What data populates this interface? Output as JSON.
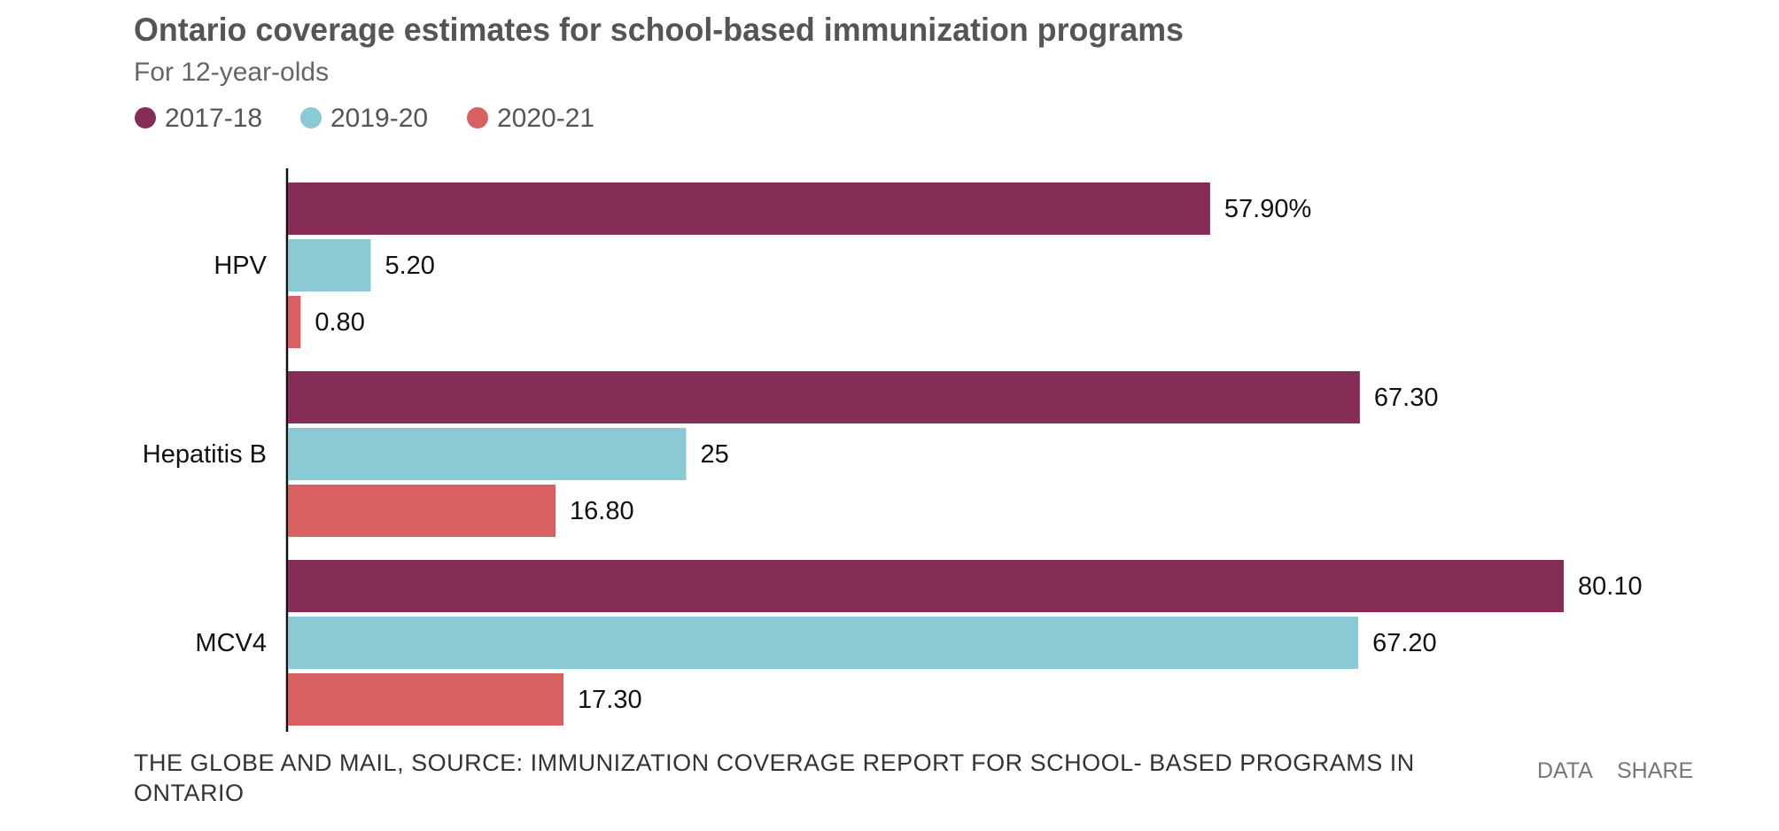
{
  "chart_data": {
    "type": "bar",
    "orientation": "horizontal",
    "title": "Ontario coverage estimates for school-based immunization programs",
    "subtitle": "For 12-year-olds",
    "categories": [
      "HPV",
      "Hepatitis B",
      "MCV4"
    ],
    "series": [
      {
        "name": "2017-18",
        "color": "#852c57",
        "values": [
          57.9,
          67.3,
          80.1
        ],
        "value_labels": [
          "57.90%",
          "67.30",
          "80.10"
        ]
      },
      {
        "name": "2019-20",
        "color": "#8bcad4",
        "values": [
          5.2,
          25,
          67.2
        ],
        "value_labels": [
          "5.20",
          "25",
          "67.20"
        ]
      },
      {
        "name": "2020-21",
        "color": "#d86060",
        "values": [
          0.8,
          16.8,
          17.3
        ],
        "value_labels": [
          "0.80",
          "16.80",
          "17.30"
        ]
      }
    ],
    "source": "THE GLOBE AND MAIL, SOURCE: IMMUNIZATION COVERAGE REPORT FOR SCHOOL- BASED PROGRAMS IN ONTARIO",
    "links": [
      "DATA",
      "SHARE"
    ]
  }
}
